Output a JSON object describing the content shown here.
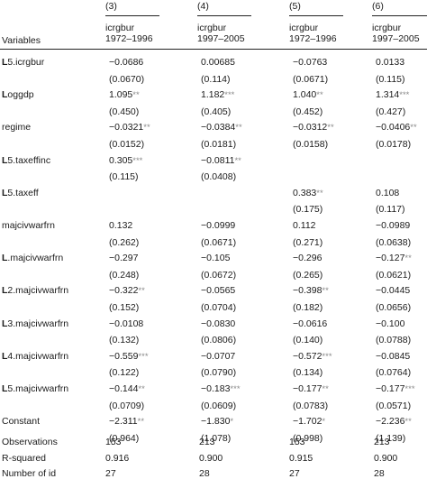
{
  "header": {
    "variables_label": "Variables",
    "columns": [
      {
        "num": "(3)",
        "dep": "icrgbur",
        "period": "1972–1996"
      },
      {
        "num": "(4)",
        "dep": "icrgbur",
        "period": "1997–2005"
      },
      {
        "num": "(5)",
        "dep": "icrgbur",
        "period": "1972–1996"
      },
      {
        "num": "(6)",
        "dep": "icrgbur",
        "period": "1997–2005"
      }
    ]
  },
  "rows": [
    {
      "label_bold": "L",
      "label_rest": "5.icrgbur",
      "coef": [
        [
          "−0.0686",
          ""
        ],
        [
          "0.00685",
          ""
        ],
        [
          "−0.0763",
          ""
        ],
        [
          "0.0133",
          ""
        ]
      ],
      "se": [
        "(0.0670)",
        "(0.114)",
        "(0.0671)",
        "(0.115)"
      ]
    },
    {
      "label_bold": "L",
      "label_rest": "oggdp",
      "coef": [
        [
          "1.095",
          "**"
        ],
        [
          "1.182",
          "***"
        ],
        [
          "1.040",
          "**"
        ],
        [
          "1.314",
          "***"
        ]
      ],
      "se": [
        "(0.450)",
        "(0.405)",
        "(0.452)",
        "(0.427)"
      ]
    },
    {
      "label_bold": "",
      "label_rest": "regime",
      "coef": [
        [
          "−0.0321",
          "**"
        ],
        [
          "−0.0384",
          "**"
        ],
        [
          "−0.0312",
          "**"
        ],
        [
          "−0.0406",
          "**"
        ]
      ],
      "se": [
        "(0.0152)",
        "(0.0181)",
        "(0.0158)",
        "(0.0178)"
      ]
    },
    {
      "label_bold": "L",
      "label_rest": "5.taxeffinc",
      "coef": [
        [
          "0.305",
          "***"
        ],
        [
          "−0.0811",
          "**"
        ],
        [
          "",
          ""
        ],
        [
          "",
          ""
        ]
      ],
      "se": [
        "(0.115)",
        "(0.0408)",
        "",
        ""
      ]
    },
    {
      "label_bold": "L",
      "label_rest": "5.taxeff",
      "coef": [
        [
          "",
          ""
        ],
        [
          "",
          ""
        ],
        [
          "0.383",
          "**"
        ],
        [
          "0.108",
          ""
        ]
      ],
      "se": [
        "",
        "",
        "(0.175)",
        "(0.117)"
      ]
    },
    {
      "label_bold": "",
      "label_rest": "majcivwarfrn",
      "coef": [
        [
          "0.132",
          ""
        ],
        [
          "−0.0999",
          ""
        ],
        [
          "0.112",
          ""
        ],
        [
          "−0.0989",
          ""
        ]
      ],
      "se": [
        "(0.262)",
        "(0.0671)",
        "(0.271)",
        "(0.0638)"
      ]
    },
    {
      "label_bold": "L",
      "label_rest": ".majcivwarfrn",
      "coef": [
        [
          "−0.297",
          ""
        ],
        [
          "−0.105",
          ""
        ],
        [
          "−0.296",
          ""
        ],
        [
          "−0.127",
          "**"
        ]
      ],
      "se": [
        "(0.248)",
        "(0.0672)",
        "(0.265)",
        "(0.0621)"
      ]
    },
    {
      "label_bold": "L",
      "label_rest": "2.majcivwarfrn",
      "coef": [
        [
          "−0.322",
          "**"
        ],
        [
          "−0.0565",
          ""
        ],
        [
          "−0.398",
          "**"
        ],
        [
          "−0.0445",
          ""
        ]
      ],
      "se": [
        "(0.152)",
        "(0.0704)",
        "(0.182)",
        "(0.0656)"
      ]
    },
    {
      "label_bold": "L",
      "label_rest": "3.majcivwarfrn",
      "coef": [
        [
          "−0.0108",
          ""
        ],
        [
          "−0.0830",
          ""
        ],
        [
          "−0.0616",
          ""
        ],
        [
          "−0.100",
          ""
        ]
      ],
      "se": [
        "(0.132)",
        "(0.0806)",
        "(0.140)",
        "(0.0788)"
      ]
    },
    {
      "label_bold": "L",
      "label_rest": "4.majcivwarfrn",
      "coef": [
        [
          "−0.559",
          "***"
        ],
        [
          "−0.0707",
          ""
        ],
        [
          "−0.572",
          "***"
        ],
        [
          "−0.0845",
          ""
        ]
      ],
      "se": [
        "(0.122)",
        "(0.0790)",
        "(0.134)",
        "(0.0764)"
      ]
    },
    {
      "label_bold": "L",
      "label_rest": "5.majcivwarfrn",
      "coef": [
        [
          "−0.144",
          "**"
        ],
        [
          "−0.183",
          "***"
        ],
        [
          "−0.177",
          "**"
        ],
        [
          "−0.177",
          "***"
        ]
      ],
      "se": [
        "(0.0709)",
        "(0.0609)",
        "(0.0783)",
        "(0.0571)"
      ]
    },
    {
      "label_bold": "",
      "label_rest": "Constant",
      "coef": [
        [
          "−2.311",
          "**"
        ],
        [
          "−1.830",
          "*"
        ],
        [
          "−1.702",
          "*"
        ],
        [
          "−2.236",
          "**"
        ]
      ],
      "se": [
        "(0.964)",
        "(1.078)",
        "(0.998)",
        "(1.139)"
      ]
    }
  ],
  "stats": [
    {
      "label": "Observations",
      "values": [
        "153",
        "213",
        "153",
        "213"
      ]
    },
    {
      "label": "R-squared",
      "values": [
        "0.916",
        "0.900",
        "0.915",
        "0.900"
      ]
    },
    {
      "label": "Number of id",
      "values": [
        "27",
        "28",
        "27",
        "28"
      ]
    }
  ]
}
